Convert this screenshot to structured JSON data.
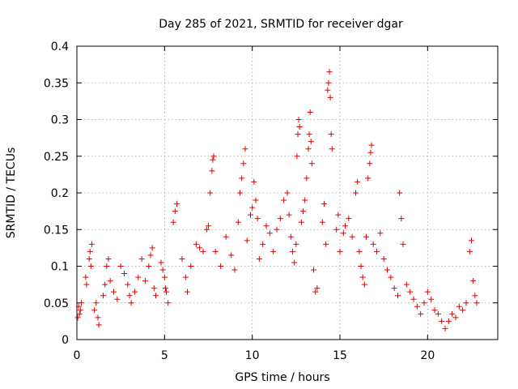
{
  "chart_data": {
    "type": "scatter",
    "title": "Day 285 of 2021, SRMTID for receiver dgar",
    "xlabel": "GPS time / hours",
    "ylabel": "SRMTID / TECUs",
    "xlim": [
      0,
      24
    ],
    "ylim": [
      0,
      0.4
    ],
    "grid": true,
    "marker": "+",
    "color": "#e00000",
    "x_ticks": [
      0,
      5,
      10,
      15,
      20
    ],
    "x_tick_labels": [
      "0",
      "5",
      "10",
      "15",
      "20"
    ],
    "y_ticks": [
      0,
      0.05,
      0.1,
      0.15,
      0.2,
      0.25,
      0.3,
      0.35,
      0.4
    ],
    "y_tick_labels": [
      "0",
      "0.05",
      "0.1",
      "0.15",
      "0.2",
      "0.25",
      "0.3",
      "0.35",
      "0.4"
    ],
    "series": [
      {
        "name": "SRMTID",
        "points": [
          [
            0.05,
            0.03
          ],
          [
            0.1,
            0.045
          ],
          [
            0.15,
            0.035
          ],
          [
            0.2,
            0.04
          ],
          [
            0.25,
            0.05
          ],
          [
            0.5,
            0.085
          ],
          [
            0.55,
            0.075
          ],
          [
            0.7,
            0.11
          ],
          [
            0.75,
            0.12
          ],
          [
            0.8,
            0.1
          ],
          [
            0.85,
            0.13
          ],
          [
            1.0,
            0.04
          ],
          [
            1.1,
            0.05
          ],
          [
            1.2,
            0.03
          ],
          [
            1.25,
            0.02
          ],
          [
            1.5,
            0.06
          ],
          [
            1.6,
            0.075
          ],
          [
            1.7,
            0.1
          ],
          [
            1.8,
            0.11
          ],
          [
            1.9,
            0.08
          ],
          [
            2.1,
            0.065
          ],
          [
            2.3,
            0.055
          ],
          [
            2.5,
            0.1
          ],
          [
            2.7,
            0.09
          ],
          [
            2.9,
            0.075
          ],
          [
            3.0,
            0.06
          ],
          [
            3.1,
            0.05
          ],
          [
            3.3,
            0.065
          ],
          [
            3.5,
            0.085
          ],
          [
            3.7,
            0.11
          ],
          [
            3.9,
            0.08
          ],
          [
            4.1,
            0.1
          ],
          [
            4.2,
            0.115
          ],
          [
            4.3,
            0.125
          ],
          [
            4.4,
            0.07
          ],
          [
            4.5,
            0.06
          ],
          [
            4.8,
            0.105
          ],
          [
            4.9,
            0.095
          ],
          [
            5.0,
            0.085
          ],
          [
            5.05,
            0.07
          ],
          [
            5.1,
            0.065
          ],
          [
            5.2,
            0.05
          ],
          [
            5.5,
            0.16
          ],
          [
            5.6,
            0.175
          ],
          [
            5.7,
            0.185
          ],
          [
            6.0,
            0.11
          ],
          [
            6.2,
            0.085
          ],
          [
            6.3,
            0.065
          ],
          [
            6.5,
            0.1
          ],
          [
            6.8,
            0.13
          ],
          [
            7.0,
            0.125
          ],
          [
            7.2,
            0.12
          ],
          [
            7.4,
            0.15
          ],
          [
            7.5,
            0.155
          ],
          [
            7.6,
            0.2
          ],
          [
            7.7,
            0.23
          ],
          [
            7.75,
            0.245
          ],
          [
            7.8,
            0.25
          ],
          [
            7.9,
            0.12
          ],
          [
            8.2,
            0.1
          ],
          [
            8.5,
            0.14
          ],
          [
            8.8,
            0.115
          ],
          [
            9.0,
            0.095
          ],
          [
            9.2,
            0.16
          ],
          [
            9.3,
            0.2
          ],
          [
            9.4,
            0.22
          ],
          [
            9.5,
            0.24
          ],
          [
            9.6,
            0.26
          ],
          [
            9.7,
            0.135
          ],
          [
            9.9,
            0.17
          ],
          [
            10.0,
            0.18
          ],
          [
            10.1,
            0.215
          ],
          [
            10.2,
            0.19
          ],
          [
            10.3,
            0.165
          ],
          [
            10.4,
            0.11
          ],
          [
            10.6,
            0.13
          ],
          [
            10.8,
            0.155
          ],
          [
            11.0,
            0.145
          ],
          [
            11.2,
            0.12
          ],
          [
            11.4,
            0.15
          ],
          [
            11.6,
            0.165
          ],
          [
            11.8,
            0.19
          ],
          [
            12.0,
            0.2
          ],
          [
            12.1,
            0.17
          ],
          [
            12.2,
            0.14
          ],
          [
            12.3,
            0.12
          ],
          [
            12.4,
            0.105
          ],
          [
            12.5,
            0.13
          ],
          [
            12.55,
            0.25
          ],
          [
            12.6,
            0.28
          ],
          [
            12.65,
            0.3
          ],
          [
            12.7,
            0.29
          ],
          [
            12.8,
            0.16
          ],
          [
            12.9,
            0.175
          ],
          [
            13.0,
            0.19
          ],
          [
            13.1,
            0.22
          ],
          [
            13.2,
            0.26
          ],
          [
            13.25,
            0.28
          ],
          [
            13.3,
            0.31
          ],
          [
            13.35,
            0.27
          ],
          [
            13.4,
            0.24
          ],
          [
            13.5,
            0.095
          ],
          [
            13.6,
            0.065
          ],
          [
            13.7,
            0.07
          ],
          [
            14.0,
            0.16
          ],
          [
            14.1,
            0.185
          ],
          [
            14.2,
            0.13
          ],
          [
            14.3,
            0.34
          ],
          [
            14.35,
            0.35
          ],
          [
            14.4,
            0.365
          ],
          [
            14.45,
            0.33
          ],
          [
            14.5,
            0.28
          ],
          [
            14.55,
            0.26
          ],
          [
            14.8,
            0.15
          ],
          [
            14.9,
            0.17
          ],
          [
            15.0,
            0.12
          ],
          [
            15.2,
            0.145
          ],
          [
            15.3,
            0.155
          ],
          [
            15.5,
            0.165
          ],
          [
            15.7,
            0.14
          ],
          [
            15.9,
            0.2
          ],
          [
            16.0,
            0.215
          ],
          [
            16.1,
            0.12
          ],
          [
            16.2,
            0.1
          ],
          [
            16.3,
            0.085
          ],
          [
            16.4,
            0.075
          ],
          [
            16.5,
            0.14
          ],
          [
            16.6,
            0.22
          ],
          [
            16.7,
            0.24
          ],
          [
            16.75,
            0.255
          ],
          [
            16.8,
            0.265
          ],
          [
            16.9,
            0.13
          ],
          [
            17.1,
            0.12
          ],
          [
            17.3,
            0.145
          ],
          [
            17.5,
            0.11
          ],
          [
            17.7,
            0.095
          ],
          [
            17.9,
            0.085
          ],
          [
            18.1,
            0.07
          ],
          [
            18.3,
            0.06
          ],
          [
            18.4,
            0.2
          ],
          [
            18.5,
            0.165
          ],
          [
            18.6,
            0.13
          ],
          [
            18.8,
            0.075
          ],
          [
            19.0,
            0.065
          ],
          [
            19.2,
            0.055
          ],
          [
            19.4,
            0.045
          ],
          [
            19.6,
            0.035
          ],
          [
            19.8,
            0.05
          ],
          [
            20.0,
            0.065
          ],
          [
            20.2,
            0.055
          ],
          [
            20.4,
            0.04
          ],
          [
            20.6,
            0.035
          ],
          [
            20.8,
            0.025
          ],
          [
            21.0,
            0.015
          ],
          [
            21.2,
            0.025
          ],
          [
            21.4,
            0.035
          ],
          [
            21.6,
            0.03
          ],
          [
            21.8,
            0.045
          ],
          [
            22.0,
            0.04
          ],
          [
            22.2,
            0.05
          ],
          [
            22.4,
            0.12
          ],
          [
            22.5,
            0.135
          ],
          [
            22.6,
            0.08
          ],
          [
            22.7,
            0.06
          ],
          [
            22.8,
            0.05
          ]
        ]
      }
    ]
  }
}
